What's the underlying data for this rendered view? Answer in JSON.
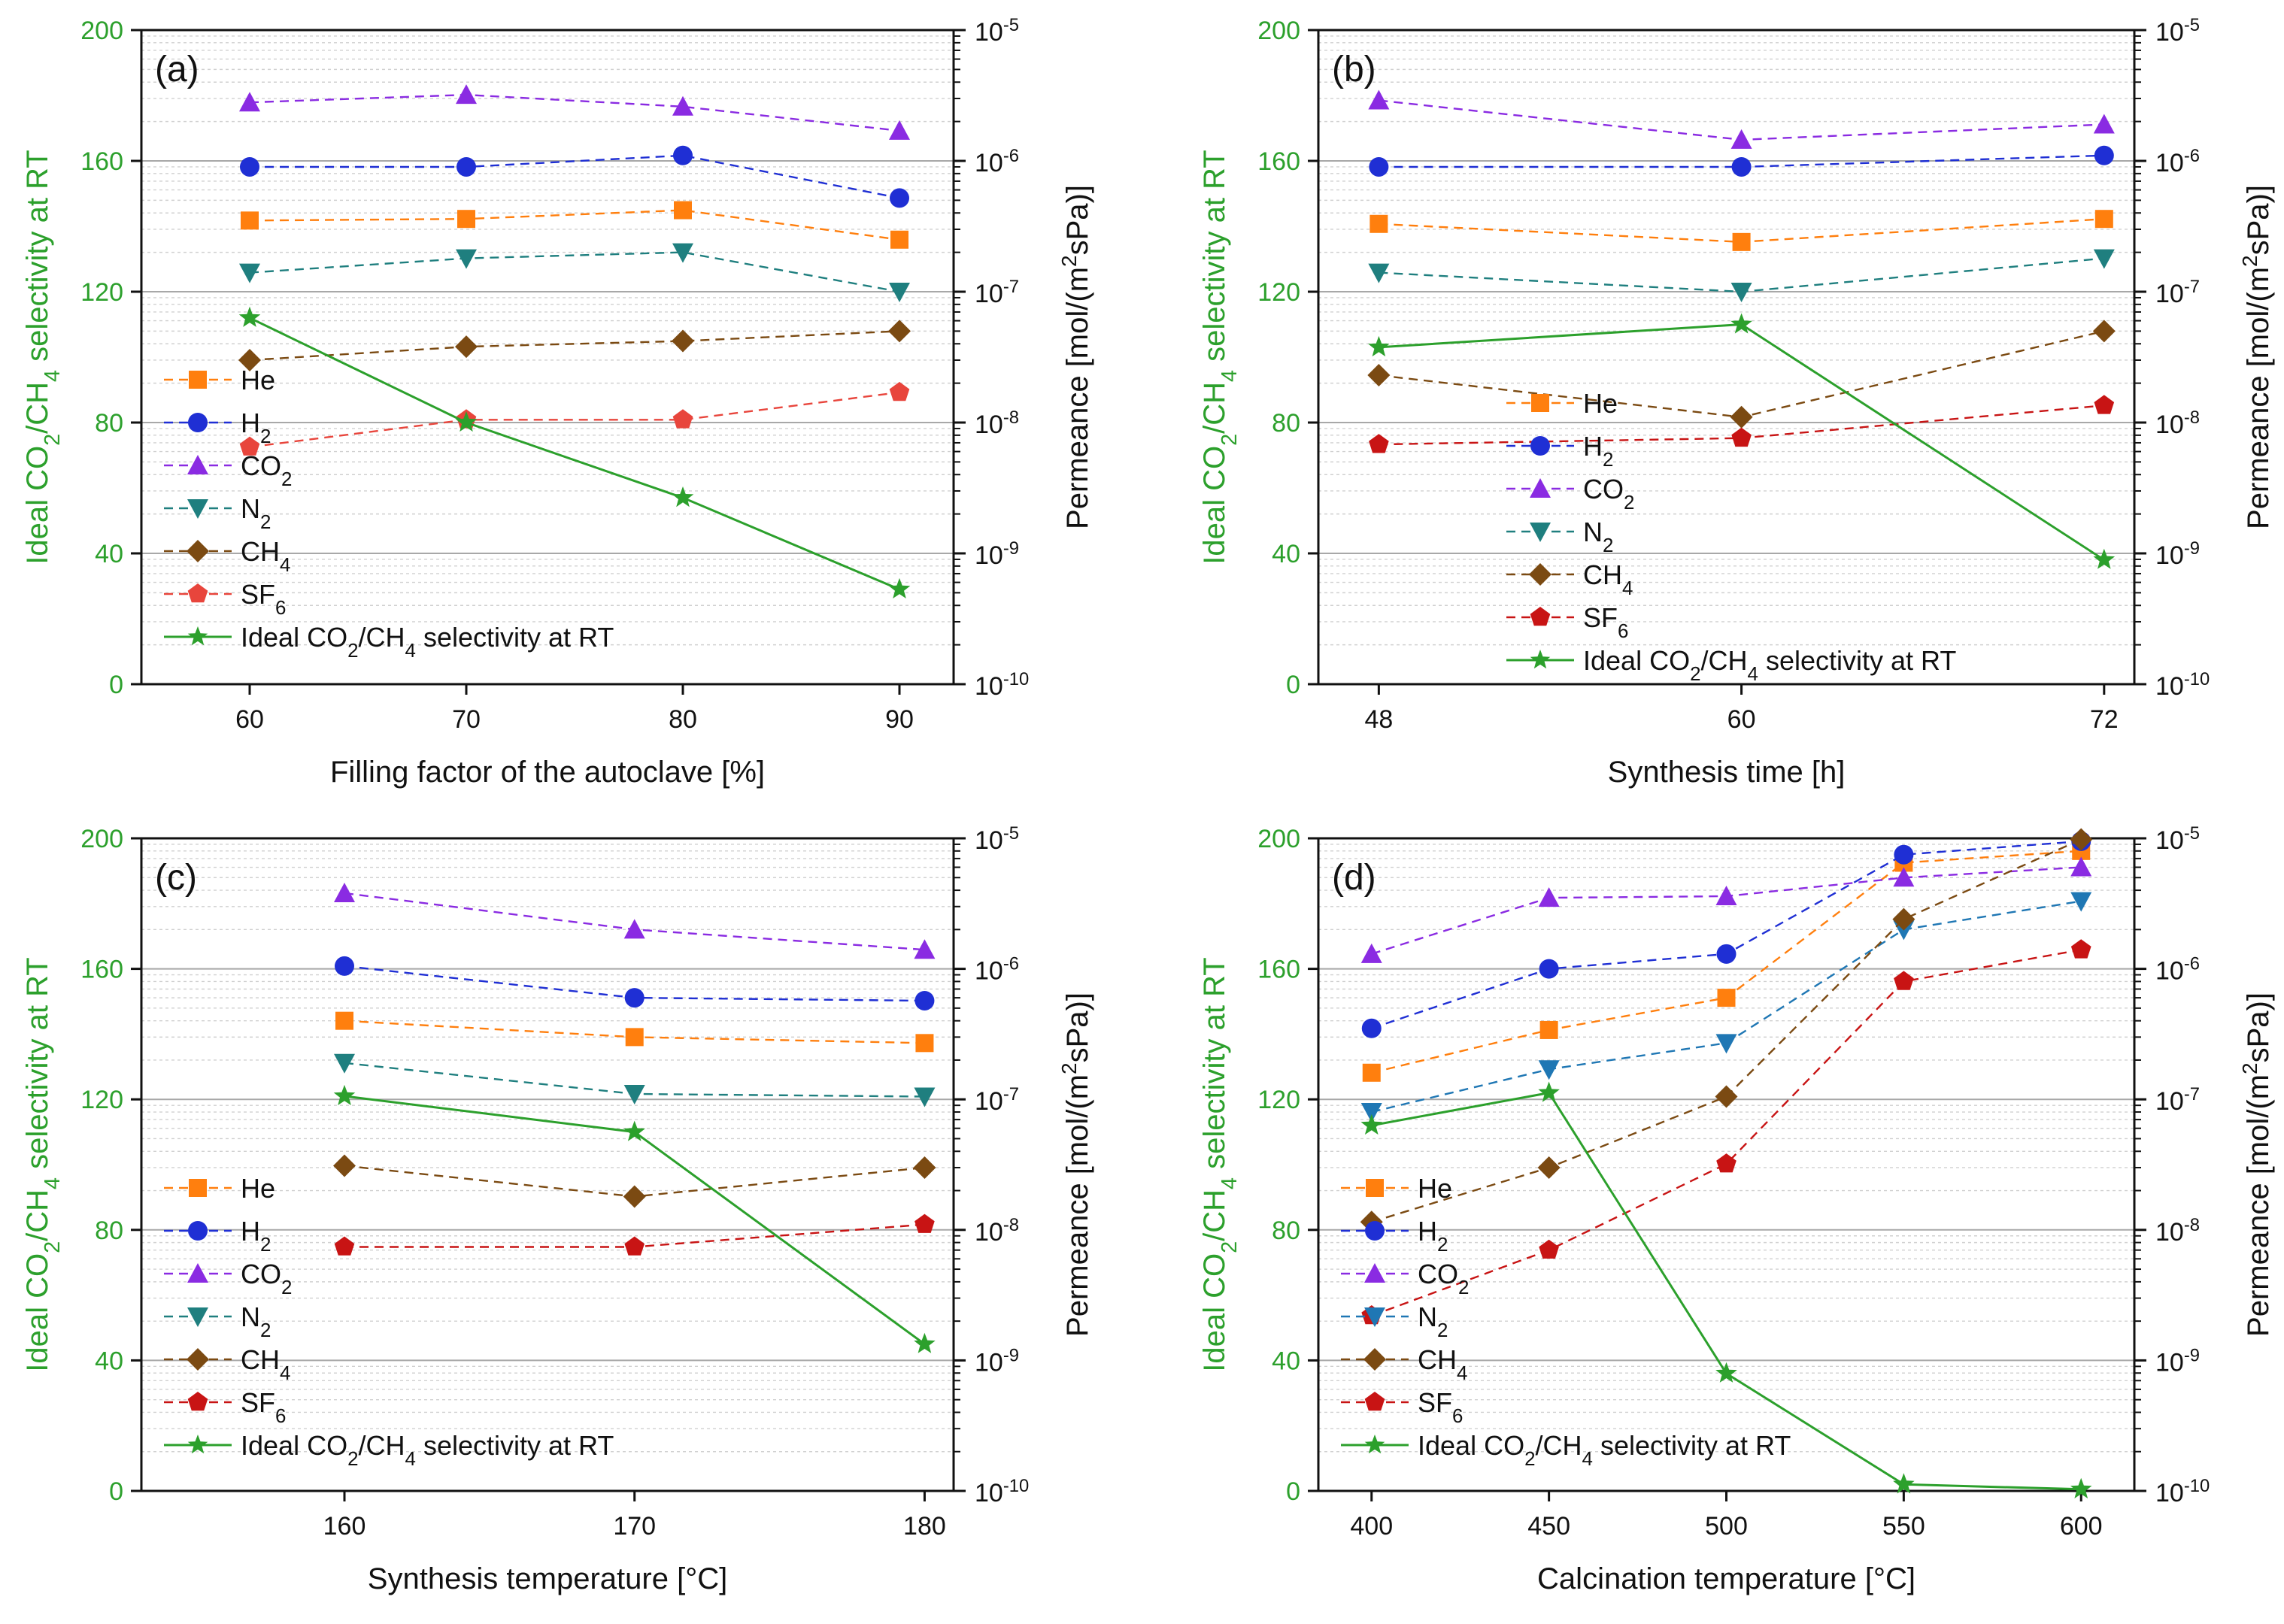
{
  "chart_data": [
    {
      "type": "line",
      "panel_label": "(a)",
      "xlabel": "Filling factor of the autoclave [%]",
      "ylabel_left": "Ideal CO2/CH4 selectivity at RT",
      "ylabel_right": "Permeance [mol/(m2sPa)]",
      "x": [
        60,
        70,
        80,
        90
      ],
      "xlim": [
        55,
        92.5
      ],
      "xticks": [
        "60",
        "70",
        "80",
        "90"
      ],
      "ylim_left": [
        0,
        200
      ],
      "yticks_left": [
        "0",
        "40",
        "80",
        "120",
        "160",
        "200"
      ],
      "ylim_right_log10": [
        -10,
        -5
      ],
      "yticks_right": [
        "10^-10",
        "10^-9",
        "10^-8",
        "10^-7",
        "10^-6",
        "10^-5"
      ],
      "legend_position": "left",
      "series": [
        {
          "name": "He",
          "axis": "right",
          "color": "#ff7f0e",
          "marker": "square",
          "dash": true,
          "values": [
            3.5e-07,
            3.6e-07,
            4.2e-07,
            2.5e-07
          ]
        },
        {
          "name": "H2",
          "axis": "right",
          "color": "#1f2fd4",
          "marker": "circle",
          "dash": true,
          "values": [
            9e-07,
            9e-07,
            1.1e-06,
            5.2e-07
          ]
        },
        {
          "name": "CO2",
          "axis": "right",
          "color": "#8a2be2",
          "marker": "triangle-up",
          "dash": true,
          "values": [
            2.8e-06,
            3.2e-06,
            2.6e-06,
            1.7e-06
          ]
        },
        {
          "name": "N2",
          "axis": "right",
          "color": "#1f7f7f",
          "marker": "triangle-down",
          "dash": true,
          "values": [
            1.4e-07,
            1.8e-07,
            2e-07,
            1e-07
          ]
        },
        {
          "name": "CH4",
          "axis": "right",
          "color": "#7b4a12",
          "marker": "diamond",
          "dash": true,
          "values": [
            3e-08,
            3.8e-08,
            4.2e-08,
            5e-08
          ]
        },
        {
          "name": "SF6",
          "axis": "right",
          "color": "#e8453c",
          "marker": "pentagon",
          "dash": true,
          "values": [
            6.5e-09,
            1.05e-08,
            1.05e-08,
            1.7e-08
          ]
        },
        {
          "name": "Ideal CO2/CH4 selectivity at RT",
          "axis": "left",
          "color": "#2ca02c",
          "marker": "star",
          "dash": false,
          "values": [
            112,
            80,
            57,
            29
          ]
        }
      ]
    },
    {
      "type": "line",
      "panel_label": "(b)",
      "xlabel": "Synthesis time [h]",
      "ylabel_left": "Ideal CO2/CH4 selectivity at RT",
      "ylabel_right": "Permeance [mol/(m2sPa)]",
      "x": [
        48,
        60,
        72
      ],
      "xlim": [
        46,
        73
      ],
      "xticks": [
        "48",
        "60",
        "72"
      ],
      "ylim_left": [
        0,
        200
      ],
      "yticks_left": [
        "0",
        "40",
        "80",
        "120",
        "160",
        "200"
      ],
      "ylim_right_log10": [
        -10,
        -5
      ],
      "yticks_right": [
        "10^-10",
        "10^-9",
        "10^-8",
        "10^-7",
        "10^-6",
        "10^-5"
      ],
      "legend_position": "center",
      "series": [
        {
          "name": "He",
          "axis": "right",
          "color": "#ff7f0e",
          "marker": "square",
          "dash": true,
          "values": [
            3.3e-07,
            2.4e-07,
            3.6e-07
          ]
        },
        {
          "name": "H2",
          "axis": "right",
          "color": "#1f2fd4",
          "marker": "circle",
          "dash": true,
          "values": [
            9e-07,
            9e-07,
            1.1e-06
          ]
        },
        {
          "name": "CO2",
          "axis": "right",
          "color": "#8a2be2",
          "marker": "triangle-up",
          "dash": true,
          "values": [
            2.9e-06,
            1.45e-06,
            1.9e-06
          ]
        },
        {
          "name": "N2",
          "axis": "right",
          "color": "#1f7f7f",
          "marker": "triangle-down",
          "dash": true,
          "values": [
            1.4e-07,
            1e-07,
            1.8e-07
          ]
        },
        {
          "name": "CH4",
          "axis": "right",
          "color": "#7b4a12",
          "marker": "diamond",
          "dash": true,
          "values": [
            2.3e-08,
            1.1e-08,
            5e-08
          ]
        },
        {
          "name": "SF6",
          "axis": "right",
          "color": "#c81414",
          "marker": "pentagon",
          "dash": true,
          "values": [
            6.8e-09,
            7.6e-09,
            1.35e-08
          ]
        },
        {
          "name": "Ideal CO2/CH4 selectivity at RT",
          "axis": "left",
          "color": "#2ca02c",
          "marker": "star",
          "dash": false,
          "values": [
            103,
            110,
            38
          ]
        }
      ]
    },
    {
      "type": "line",
      "panel_label": "(c)",
      "xlabel": "Synthesis temperature [°C]",
      "ylabel_left": "Ideal CO2/CH4 selectivity at RT",
      "ylabel_right": "Permeance [mol/(m2sPa)]",
      "x": [
        160,
        170,
        180
      ],
      "xlim": [
        153,
        181
      ],
      "xticks": [
        "160",
        "170",
        "180"
      ],
      "ylim_left": [
        0,
        200
      ],
      "yticks_left": [
        "0",
        "40",
        "80",
        "120",
        "160",
        "200"
      ],
      "ylim_right_log10": [
        -10,
        -5
      ],
      "yticks_right": [
        "10^-10",
        "10^-9",
        "10^-8",
        "10^-7",
        "10^-6",
        "10^-5"
      ],
      "legend_position": "left",
      "series": [
        {
          "name": "He",
          "axis": "right",
          "color": "#ff7f0e",
          "marker": "square",
          "dash": true,
          "values": [
            4e-07,
            3e-07,
            2.7e-07
          ]
        },
        {
          "name": "H2",
          "axis": "right",
          "color": "#1f2fd4",
          "marker": "circle",
          "dash": true,
          "values": [
            1.05e-06,
            6e-07,
            5.7e-07
          ]
        },
        {
          "name": "CO2",
          "axis": "right",
          "color": "#8a2be2",
          "marker": "triangle-up",
          "dash": true,
          "values": [
            3.8e-06,
            2e-06,
            1.4e-06
          ]
        },
        {
          "name": "N2",
          "axis": "right",
          "color": "#1f7f7f",
          "marker": "triangle-down",
          "dash": true,
          "values": [
            1.9e-07,
            1.1e-07,
            1.05e-07
          ]
        },
        {
          "name": "CH4",
          "axis": "right",
          "color": "#7b4a12",
          "marker": "diamond",
          "dash": true,
          "values": [
            3.1e-08,
            1.8e-08,
            3e-08
          ]
        },
        {
          "name": "SF6",
          "axis": "right",
          "color": "#c81414",
          "marker": "pentagon",
          "dash": true,
          "values": [
            7.4e-09,
            7.4e-09,
            1.1e-08
          ]
        },
        {
          "name": "Ideal CO2/CH4 selectivity at RT",
          "axis": "left",
          "color": "#2ca02c",
          "marker": "star",
          "dash": false,
          "values": [
            121,
            110,
            45
          ]
        }
      ]
    },
    {
      "type": "line",
      "panel_label": "(d)",
      "xlabel": "Calcination temperature [°C]",
      "ylabel_left": "Ideal CO2/CH4 selectivity at RT",
      "ylabel_right": "Permeance [mol/(m2sPa)]",
      "x": [
        400,
        450,
        500,
        550,
        600
      ],
      "xlim": [
        385,
        615
      ],
      "xticks": [
        "400",
        "450",
        "500",
        "550",
        "600"
      ],
      "ylim_left": [
        0,
        200
      ],
      "yticks_left": [
        "0",
        "40",
        "80",
        "120",
        "160",
        "200"
      ],
      "ylim_right_log10": [
        -10,
        -5
      ],
      "yticks_right": [
        "10^-10",
        "10^-9",
        "10^-8",
        "10^-7",
        "10^-6",
        "10^-5"
      ],
      "legend_position": "left",
      "series": [
        {
          "name": "He",
          "axis": "right",
          "color": "#ff7f0e",
          "marker": "square",
          "dash": true,
          "values": [
            1.6e-07,
            3.4e-07,
            6e-07,
            6.5e-06,
            8e-06
          ]
        },
        {
          "name": "H2",
          "axis": "right",
          "color": "#1f2fd4",
          "marker": "circle",
          "dash": true,
          "values": [
            3.5e-07,
            1e-06,
            1.3e-06,
            7.5e-06,
            9.5e-06
          ]
        },
        {
          "name": "CO2",
          "axis": "right",
          "color": "#8a2be2",
          "marker": "triangle-up",
          "dash": true,
          "values": [
            1.3e-06,
            3.5e-06,
            3.6e-06,
            5e-06,
            6e-06
          ]
        },
        {
          "name": "N2",
          "axis": "right",
          "color": "#1f77b4",
          "marker": "triangle-down",
          "dash": true,
          "values": [
            8e-08,
            1.7e-07,
            2.7e-07,
            2e-06,
            3.3e-06
          ]
        },
        {
          "name": "CH4",
          "axis": "right",
          "color": "#7b4a12",
          "marker": "diamond",
          "dash": true,
          "values": [
            1.15e-08,
            3e-08,
            1.05e-07,
            2.4e-06,
            9.8e-06
          ]
        },
        {
          "name": "SF6",
          "axis": "right",
          "color": "#c81414",
          "marker": "pentagon",
          "dash": true,
          "values": [
            2.2e-09,
            7e-09,
            3.2e-08,
            8e-07,
            1.4e-06
          ]
        },
        {
          "name": "Ideal CO2/CH4 selectivity at RT",
          "axis": "left",
          "color": "#2ca02c",
          "marker": "star",
          "dash": false,
          "values": [
            112,
            122,
            36,
            2,
            0.5
          ]
        }
      ]
    }
  ]
}
